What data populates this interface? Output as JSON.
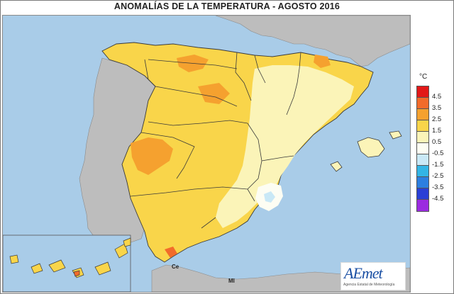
{
  "title": "ANOMALÍAS DE LA TEMPERATURA - AGOSTO 2016",
  "colors": {
    "sea": "#a9cce8",
    "neighbour_land": "#bdbdbd",
    "border_line": "#3a3a3a"
  },
  "legend": {
    "unit": "°C",
    "classes": [
      {
        "label": "4.5",
        "color": "#e21818"
      },
      {
        "label": "3.5",
        "color": "#f26b2a"
      },
      {
        "label": "2.5",
        "color": "#f5a12f"
      },
      {
        "label": "1.5",
        "color": "#f9d54a"
      },
      {
        "label": "0.5",
        "color": "#fbf4b8"
      },
      {
        "label": "-0.5",
        "color": "#fdfdf3"
      },
      {
        "label": "-1.5",
        "color": "#c9e8f6"
      },
      {
        "label": "-2.5",
        "color": "#33b5e5"
      },
      {
        "label": "-3.5",
        "color": "#2d7fe0"
      },
      {
        "label": "-4.5",
        "color": "#2a3fd6"
      },
      {
        "label": "",
        "color": "#9b2be0"
      }
    ]
  },
  "places": {
    "ceuta": "Ce",
    "melilla": "Ml"
  },
  "logo": {
    "name": "AEmet",
    "subtitle": "Agencia Estatal de Meteorología"
  }
}
